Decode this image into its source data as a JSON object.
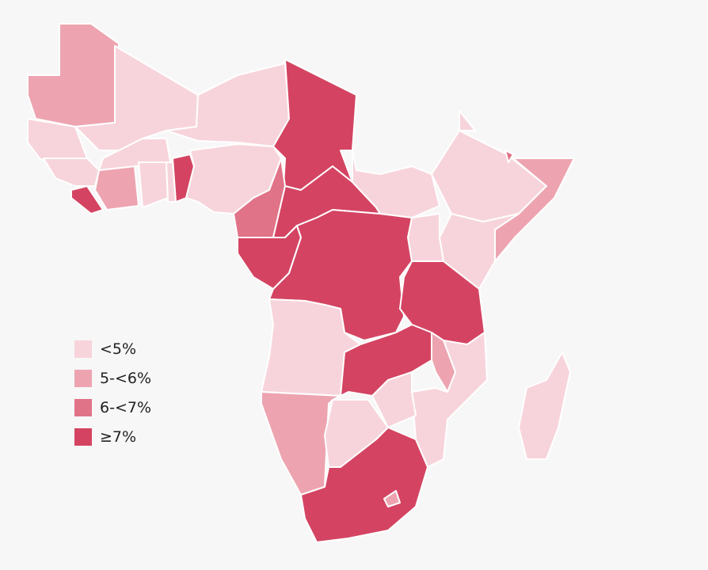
{
  "legend": {
    "items": [
      {
        "label": "<5%",
        "color": "#f7d4db"
      },
      {
        "label": "5-<6%",
        "color": "#eda4b0"
      },
      {
        "label": "6-<7%",
        "color": "#e07388"
      },
      {
        "label": "≥7%",
        "color": "#d44462"
      }
    ]
  }
}
